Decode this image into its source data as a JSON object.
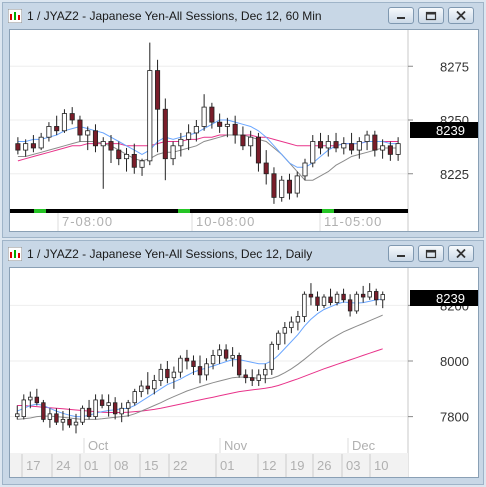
{
  "top_window": {
    "title": "1 / JYAZ2 - Japanese Yen-All Sessions, Dec 12, 60 Min",
    "price_badge": "8239",
    "y_ticks": [
      "8275",
      "8250",
      "8225"
    ],
    "x_labels": [
      "7-08:00",
      "10-08:00",
      "11-05:00"
    ]
  },
  "bottom_window": {
    "title": "1 / JYAZ2 - Japanese Yen-All Sessions, Dec 12, Daily",
    "price_badge": "8239",
    "y_ticks": [
      "8200",
      "8000",
      "7800"
    ],
    "month_labels": [
      "Oct",
      "Nov",
      "Dec"
    ],
    "day_labels": [
      "17",
      "24",
      "01",
      "08",
      "15",
      "22",
      "01",
      "12",
      "19",
      "26",
      "03",
      "10"
    ]
  },
  "colors": {
    "bull": "#ffffff",
    "bear": "#7a1d2a",
    "ma_fast": "#6aa6ff",
    "ma_mid": "#8c8c8c",
    "ma_slow": "#e8338a",
    "badge_bg": "#000000",
    "badge_fg": "#ffffff"
  },
  "window_buttons": [
    "minimize-icon",
    "restore-icon",
    "close-icon"
  ],
  "chart_data": [
    {
      "type": "candlestick",
      "title": "1 / JYAZ2 - Japanese Yen-All Sessions, Dec 12, 60 Min",
      "ylim": [
        8210,
        8290
      ],
      "last_price": 8239,
      "candles": [
        [
          8239,
          8242,
          8234,
          8236
        ],
        [
          8236,
          8241,
          8233,
          8239
        ],
        [
          8239,
          8243,
          8235,
          8237
        ],
        [
          8237,
          8244,
          8236,
          8242
        ],
        [
          8242,
          8249,
          8240,
          8247
        ],
        [
          8247,
          8252,
          8243,
          8245
        ],
        [
          8245,
          8255,
          8244,
          8253
        ],
        [
          8253,
          8256,
          8248,
          8250
        ],
        [
          8250,
          8252,
          8240,
          8243
        ],
        [
          8243,
          8247,
          8236,
          8245
        ],
        [
          8245,
          8248,
          8235,
          8238
        ],
        [
          8238,
          8242,
          8218,
          8240
        ],
        [
          8240,
          8243,
          8230,
          8236
        ],
        [
          8236,
          8240,
          8229,
          8232
        ],
        [
          8232,
          8237,
          8226,
          8234
        ],
        [
          8234,
          8239,
          8225,
          8228
        ],
        [
          8228,
          8232,
          8224,
          8231
        ],
        [
          8231,
          8286,
          8229,
          8273
        ],
        [
          8273,
          8278,
          8235,
          8255
        ],
        [
          8255,
          8260,
          8222,
          8232
        ],
        [
          8232,
          8240,
          8229,
          8238
        ],
        [
          8238,
          8244,
          8233,
          8241
        ],
        [
          8241,
          8248,
          8236,
          8244
        ],
        [
          8244,
          8250,
          8240,
          8247
        ],
        [
          8247,
          8262,
          8245,
          8256
        ],
        [
          8256,
          8258,
          8246,
          8249
        ],
        [
          8249,
          8253,
          8244,
          8247
        ],
        [
          8247,
          8251,
          8242,
          8248
        ],
        [
          8248,
          8252,
          8239,
          8243
        ],
        [
          8243,
          8247,
          8236,
          8238
        ],
        [
          8238,
          8245,
          8233,
          8242
        ],
        [
          8242,
          8244,
          8226,
          8230
        ],
        [
          8230,
          8236,
          8220,
          8225
        ],
        [
          8225,
          8228,
          8211,
          8214
        ],
        [
          8214,
          8224,
          8212,
          8222
        ],
        [
          8222,
          8225,
          8213,
          8216
        ],
        [
          8216,
          8226,
          8214,
          8224
        ],
        [
          8224,
          8232,
          8222,
          8230
        ],
        [
          8230,
          8243,
          8228,
          8240
        ],
        [
          8240,
          8244,
          8234,
          8237
        ],
        [
          8237,
          8243,
          8233,
          8240
        ],
        [
          8240,
          8244,
          8235,
          8237
        ],
        [
          8237,
          8242,
          8234,
          8239
        ],
        [
          8239,
          8244,
          8234,
          8236
        ],
        [
          8236,
          8242,
          8232,
          8240
        ],
        [
          8240,
          8245,
          8236,
          8243
        ],
        [
          8243,
          8245,
          8233,
          8236
        ],
        [
          8236,
          8241,
          8232,
          8238
        ],
        [
          8238,
          8240,
          8231,
          8234
        ],
        [
          8234,
          8242,
          8231,
          8239
        ]
      ],
      "ma_fast": [
        8240,
        8240,
        8241,
        8241,
        8242,
        8243,
        8245,
        8246,
        8247,
        8246,
        8245,
        8244,
        8242,
        8240,
        8238,
        8236,
        8234,
        8236,
        8240,
        8242,
        8241,
        8242,
        8243,
        8244,
        8246,
        8248,
        8250,
        8250,
        8249,
        8248,
        8247,
        8245,
        8242,
        8238,
        8234,
        8230,
        8228,
        8228,
        8230,
        8233,
        8236,
        8238,
        8239,
        8239,
        8239,
        8240,
        8240,
        8240,
        8239,
        8239
      ],
      "ma_mid": [
        8233,
        8233,
        8234,
        8235,
        8236,
        8237,
        8238,
        8239,
        8240,
        8240,
        8240,
        8239,
        8238,
        8236,
        8234,
        8232,
        8231,
        8232,
        8234,
        8235,
        8235,
        8236,
        8237,
        8238,
        8240,
        8241,
        8242,
        8243,
        8243,
        8243,
        8242,
        8241,
        8240,
        8237,
        8234,
        8230,
        8226,
        8222,
        8222,
        8224,
        8226,
        8229,
        8231,
        8233,
        8234,
        8235,
        8236,
        8237,
        8237,
        8237
      ],
      "ma_slow": [
        8231,
        8232,
        8233,
        8234,
        8235,
        8236,
        8237,
        8238,
        8238,
        8239,
        8239,
        8239,
        8239,
        8239,
        8238,
        8238,
        8238,
        8238,
        8239,
        8240,
        8240,
        8240,
        8241,
        8241,
        8242,
        8242,
        8243,
        8243,
        8243,
        8243,
        8243,
        8242,
        8242,
        8241,
        8240,
        8239,
        8238,
        8238,
        8238,
        8238,
        8238,
        8238,
        8239,
        8239,
        8239,
        8240,
        8240,
        8240,
        8240,
        8240
      ]
    },
    {
      "type": "candlestick",
      "title": "1 / JYAZ2 - Japanese Yen-All Sessions, Dec 12, Daily",
      "ylim": [
        7680,
        8320
      ],
      "last_price": 8239,
      "candles": [
        [
          7800,
          7840,
          7790,
          7810
        ],
        [
          7800,
          7880,
          7790,
          7860
        ],
        [
          7860,
          7890,
          7830,
          7870
        ],
        [
          7870,
          7900,
          7840,
          7850
        ],
        [
          7850,
          7860,
          7780,
          7790
        ],
        [
          7790,
          7830,
          7760,
          7810
        ],
        [
          7810,
          7830,
          7770,
          7780
        ],
        [
          7780,
          7820,
          7750,
          7790
        ],
        [
          7790,
          7830,
          7760,
          7770
        ],
        [
          7770,
          7810,
          7740,
          7780
        ],
        [
          7780,
          7840,
          7770,
          7830
        ],
        [
          7830,
          7860,
          7790,
          7800
        ],
        [
          7800,
          7880,
          7790,
          7860
        ],
        [
          7860,
          7880,
          7830,
          7840
        ],
        [
          7840,
          7880,
          7800,
          7850
        ],
        [
          7850,
          7870,
          7790,
          7810
        ],
        [
          7810,
          7850,
          7780,
          7830
        ],
        [
          7830,
          7860,
          7800,
          7850
        ],
        [
          7850,
          7900,
          7840,
          7890
        ],
        [
          7890,
          7930,
          7870,
          7910
        ],
        [
          7910,
          7960,
          7880,
          7900
        ],
        [
          7900,
          7950,
          7880,
          7930
        ],
        [
          7930,
          7990,
          7910,
          7970
        ],
        [
          7970,
          8000,
          7920,
          7940
        ],
        [
          7940,
          7980,
          7900,
          7960
        ],
        [
          7960,
          8020,
          7940,
          8010
        ],
        [
          8010,
          8040,
          7970,
          8000
        ],
        [
          8000,
          8020,
          7950,
          7980
        ],
        [
          7980,
          8020,
          7920,
          7950
        ],
        [
          7950,
          8010,
          7930,
          7990
        ],
        [
          7990,
          8040,
          7970,
          8020
        ],
        [
          8020,
          8060,
          7990,
          8040
        ],
        [
          8040,
          8060,
          8000,
          8010
        ],
        [
          8010,
          8050,
          7980,
          8020
        ],
        [
          8020,
          8030,
          7940,
          7950
        ],
        [
          7950,
          7970,
          7920,
          7940
        ],
        [
          7940,
          7970,
          7910,
          7930
        ],
        [
          7930,
          7970,
          7910,
          7950
        ],
        [
          7950,
          7990,
          7920,
          7970
        ],
        [
          7970,
          8070,
          7950,
          8060
        ],
        [
          8060,
          8110,
          8040,
          8100
        ],
        [
          8100,
          8140,
          8060,
          8120
        ],
        [
          8120,
          8160,
          8100,
          8140
        ],
        [
          8140,
          8180,
          8110,
          8160
        ],
        [
          8160,
          8250,
          8140,
          8240
        ],
        [
          8240,
          8280,
          8200,
          8230
        ],
        [
          8230,
          8250,
          8180,
          8200
        ],
        [
          8200,
          8240,
          8190,
          8230
        ],
        [
          8230,
          8260,
          8200,
          8210
        ],
        [
          8210,
          8250,
          8200,
          8240
        ],
        [
          8240,
          8260,
          8210,
          8220
        ],
        [
          8220,
          8240,
          8160,
          8180
        ],
        [
          8180,
          8250,
          8170,
          8240
        ],
        [
          8240,
          8270,
          8210,
          8230
        ],
        [
          8230,
          8280,
          8220,
          8250
        ],
        [
          8250,
          8260,
          8200,
          8220
        ],
        [
          8220,
          8250,
          8190,
          8239
        ]
      ],
      "ma_fast": [
        7820,
        7830,
        7840,
        7845,
        7840,
        7830,
        7820,
        7812,
        7805,
        7800,
        7800,
        7805,
        7812,
        7818,
        7822,
        7825,
        7828,
        7830,
        7840,
        7855,
        7870,
        7885,
        7900,
        7915,
        7925,
        7935,
        7948,
        7960,
        7968,
        7975,
        7982,
        7990,
        7998,
        8005,
        8005,
        8000,
        7995,
        7990,
        7990,
        8000,
        8020,
        8045,
        8070,
        8095,
        8125,
        8150,
        8170,
        8185,
        8195,
        8205,
        8212,
        8210,
        8208,
        8210,
        8215,
        8220,
        8222
      ],
      "ma_mid": [
        7790,
        7792,
        7795,
        7800,
        7802,
        7802,
        7800,
        7798,
        7795,
        7792,
        7790,
        7790,
        7790,
        7792,
        7795,
        7798,
        7800,
        7803,
        7810,
        7820,
        7830,
        7840,
        7850,
        7862,
        7872,
        7882,
        7892,
        7900,
        7908,
        7915,
        7922,
        7928,
        7934,
        7940,
        7942,
        7942,
        7940,
        7938,
        7936,
        7938,
        7946,
        7958,
        7972,
        7988,
        8006,
        8025,
        8045,
        8062,
        8078,
        8092,
        8105,
        8115,
        8125,
        8135,
        8145,
        8155,
        8165
      ],
      "ma_slow": [
        7840,
        7840,
        7838,
        7836,
        7834,
        7832,
        7830,
        7828,
        7826,
        7824,
        7822,
        7820,
        7818,
        7816,
        7815,
        7815,
        7815,
        7816,
        7818,
        7820,
        7823,
        7826,
        7830,
        7835,
        7840,
        7845,
        7850,
        7855,
        7860,
        7865,
        7870,
        7875,
        7880,
        7885,
        7890,
        7893,
        7896,
        7899,
        7902,
        7906,
        7912,
        7920,
        7928,
        7936,
        7945,
        7954,
        7963,
        7972,
        7980,
        7988,
        7996,
        8004,
        8012,
        8020,
        8028,
        8036,
        8044
      ]
    }
  ]
}
